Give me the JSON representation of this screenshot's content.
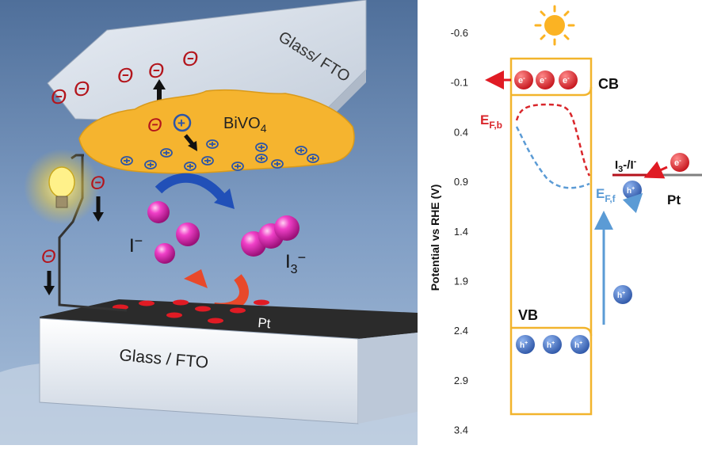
{
  "left_panel": {
    "top_plate_label": "Glass/ FTO",
    "bottom_plate_label": "Glass / FTO",
    "semiconductor_label": "BiVO",
    "semiconductor_subscript": "4",
    "counter_electrode_label": "Pt",
    "iodide_label": "I",
    "iodide_charge": "−",
    "triiodide_label": "I",
    "triiodide_subscript": "3",
    "triiodide_charge": "−",
    "electron_symbol": "Θ",
    "hole_symbol": "+"
  },
  "right_panel": {
    "axis_label": "Potential vs RHE (V)",
    "axis_ticks": [
      "-0.6",
      "-0.1",
      "0.4",
      "0.9",
      "1.4",
      "1.9",
      "2.4",
      "2.9",
      "3.4"
    ],
    "cb_label": "CB",
    "vb_label": "VB",
    "efb_main": "E",
    "efb_sub": "F,b",
    "eff_main": "E",
    "eff_sub": "F,f",
    "redox_main": "I",
    "redox_sub": "3",
    "redox_rest": "-/I",
    "redox_sup": "-",
    "pt_label": "Pt",
    "electron_label": "e",
    "electron_sup": "-",
    "hole_label": "h",
    "hole_sup": "+"
  },
  "colors": {
    "band_edge": "#f2b42c",
    "electron": "#e01b24",
    "hole": "#3a64b8",
    "fermi_bulk": "#d9262b",
    "fermi_film": "#5b9bd5",
    "sky": "#6f8fb8",
    "bivo4": "#f7b733"
  }
}
